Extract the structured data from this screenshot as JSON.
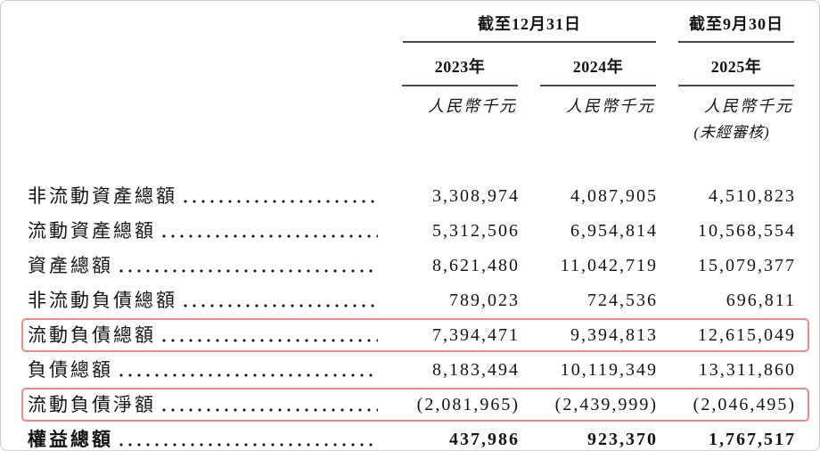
{
  "table": {
    "header": {
      "period_group_dec": "截至12月31日",
      "period_group_sep": "截至9月30日",
      "years": [
        "2023年",
        "2024年",
        "2025年"
      ],
      "unit_label": "人民幣千元",
      "unaudited_label": "(未經審核)"
    },
    "rows": [
      {
        "label": "非流動資產總額",
        "values": [
          "3,308,974",
          "4,087,905",
          "4,510,823"
        ],
        "highlighted": false,
        "bold": false
      },
      {
        "label": "流動資產總額",
        "values": [
          "5,312,506",
          "6,954,814",
          "10,568,554"
        ],
        "highlighted": false,
        "bold": false
      },
      {
        "label": "資產總額",
        "values": [
          "8,621,480",
          "11,042,719",
          "15,079,377"
        ],
        "highlighted": false,
        "bold": false
      },
      {
        "label": "非流動負債總額",
        "values": [
          "789,023",
          "724,536",
          "696,811"
        ],
        "highlighted": false,
        "bold": false
      },
      {
        "label": "流動負債總額",
        "values": [
          "7,394,471",
          "9,394,813",
          "12,615,049"
        ],
        "highlighted": true,
        "bold": false
      },
      {
        "label": "負債總額",
        "values": [
          "8,183,494",
          "10,119,349",
          "13,311,860"
        ],
        "highlighted": false,
        "bold": false
      },
      {
        "label": "流動負債淨額",
        "values": [
          "(2,081,965)",
          "(2,439,999)",
          "(2,046,495)"
        ],
        "highlighted": true,
        "bold": false
      },
      {
        "label": "權益總額",
        "values": [
          "437,986",
          "923,370",
          "1,767,517"
        ],
        "highlighted": false,
        "bold": true
      }
    ],
    "highlight_color": "#e88c8a"
  }
}
